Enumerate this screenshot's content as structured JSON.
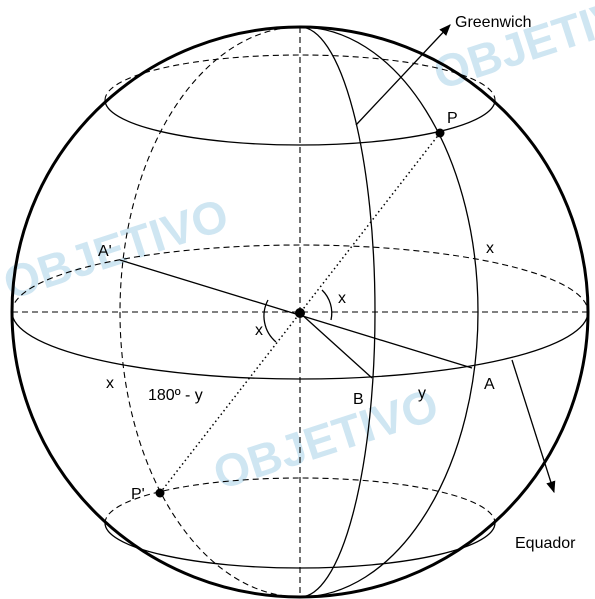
{
  "labels": {
    "greenwich": "Greenwich",
    "p": "P",
    "a_prime": "A'",
    "x": "x",
    "b": "B",
    "y": "y",
    "a": "A",
    "p_prime": "P'",
    "arc": "180º - y",
    "equator": "Equador"
  },
  "watermark": "OBJETIVO"
}
